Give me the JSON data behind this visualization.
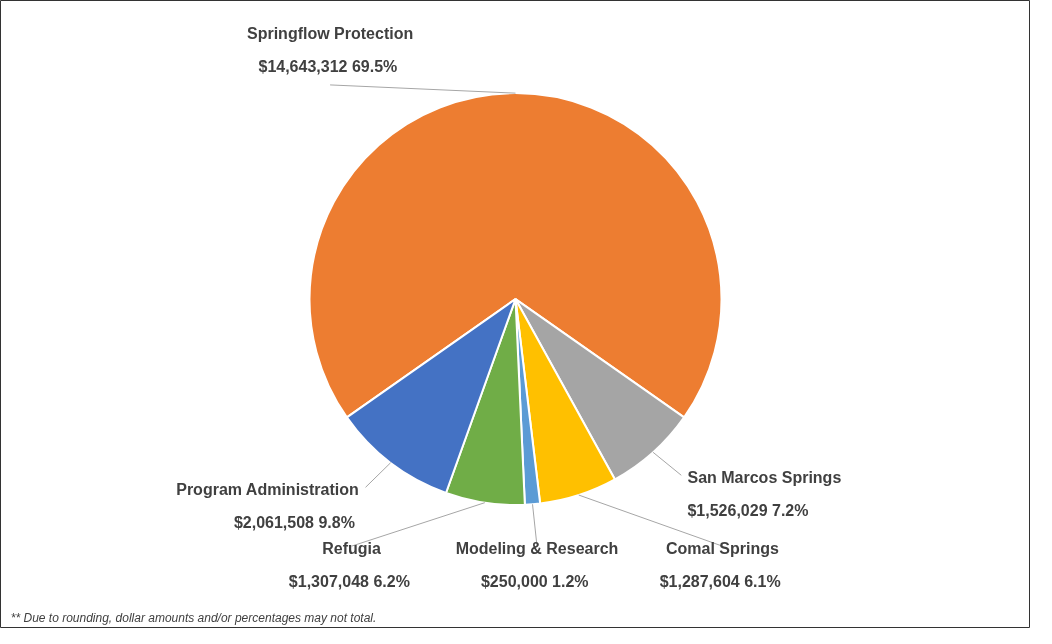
{
  "chart_data": {
    "type": "pie",
    "categories": [
      "Springflow Protection",
      "San Marcos Springs",
      "Comal Springs",
      "Modeling & Research",
      "Refugia",
      "Program Administration"
    ],
    "values": [
      14643312,
      1526029,
      1287604,
      250000,
      1307048,
      2061508
    ],
    "colors": [
      "#ed7d31",
      "#a5a5a5",
      "#ffc000",
      "#5b9bd5",
      "#70ad47",
      "#4472c4"
    ],
    "value_labels": [
      "$14,643,312  69.5%",
      "$1,526,029  7.2%",
      "$1,287,604  6.1%",
      "$250,000  1.2%",
      "$1,307,048  6.2%",
      "$2,061,508  9.8%"
    ],
    "annotations": [
      "** Due to rounding, dollar amounts and/or percentages may not total."
    ]
  }
}
